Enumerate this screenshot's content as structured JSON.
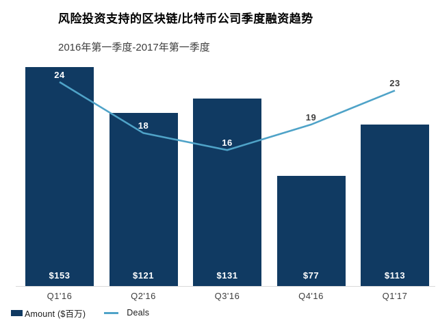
{
  "title": "风险投资支持的区块链/比特币公司季度融资趋势",
  "subtitle": "2016年第一季度-2017年第一季度",
  "legend": {
    "amount_label": "Amount ($百万)",
    "deals_label": "Deals"
  },
  "colors": {
    "bar": "#103a62",
    "line": "#4fa3c8",
    "axis": "#d9d9d9",
    "label_dark": "#3d3d3d",
    "label_light": "#ffffff"
  },
  "chart_data": {
    "type": "bar",
    "subtype": "bar+line combo",
    "categories": [
      "Q1'16",
      "Q2'16",
      "Q3'16",
      "Q4'16",
      "Q1'17"
    ],
    "series": [
      {
        "name": "Amount ($百万)",
        "type": "bar",
        "values": [
          153,
          121,
          131,
          77,
          113
        ],
        "value_labels": [
          "$153",
          "$121",
          "$131",
          "$77",
          "$113"
        ],
        "color": "#103a62"
      },
      {
        "name": "Deals",
        "type": "line",
        "values": [
          24,
          18,
          16,
          19,
          23
        ],
        "color": "#4fa3c8"
      }
    ],
    "title": "风险投资支持的区块链/比特币公司季度融资趋势",
    "xlabel": "",
    "ylabel": "",
    "ylim_amount": [
      0,
      160
    ],
    "ylim_deals": [
      0,
      33.6
    ],
    "grid": false,
    "legend_position": "bottom-left"
  }
}
